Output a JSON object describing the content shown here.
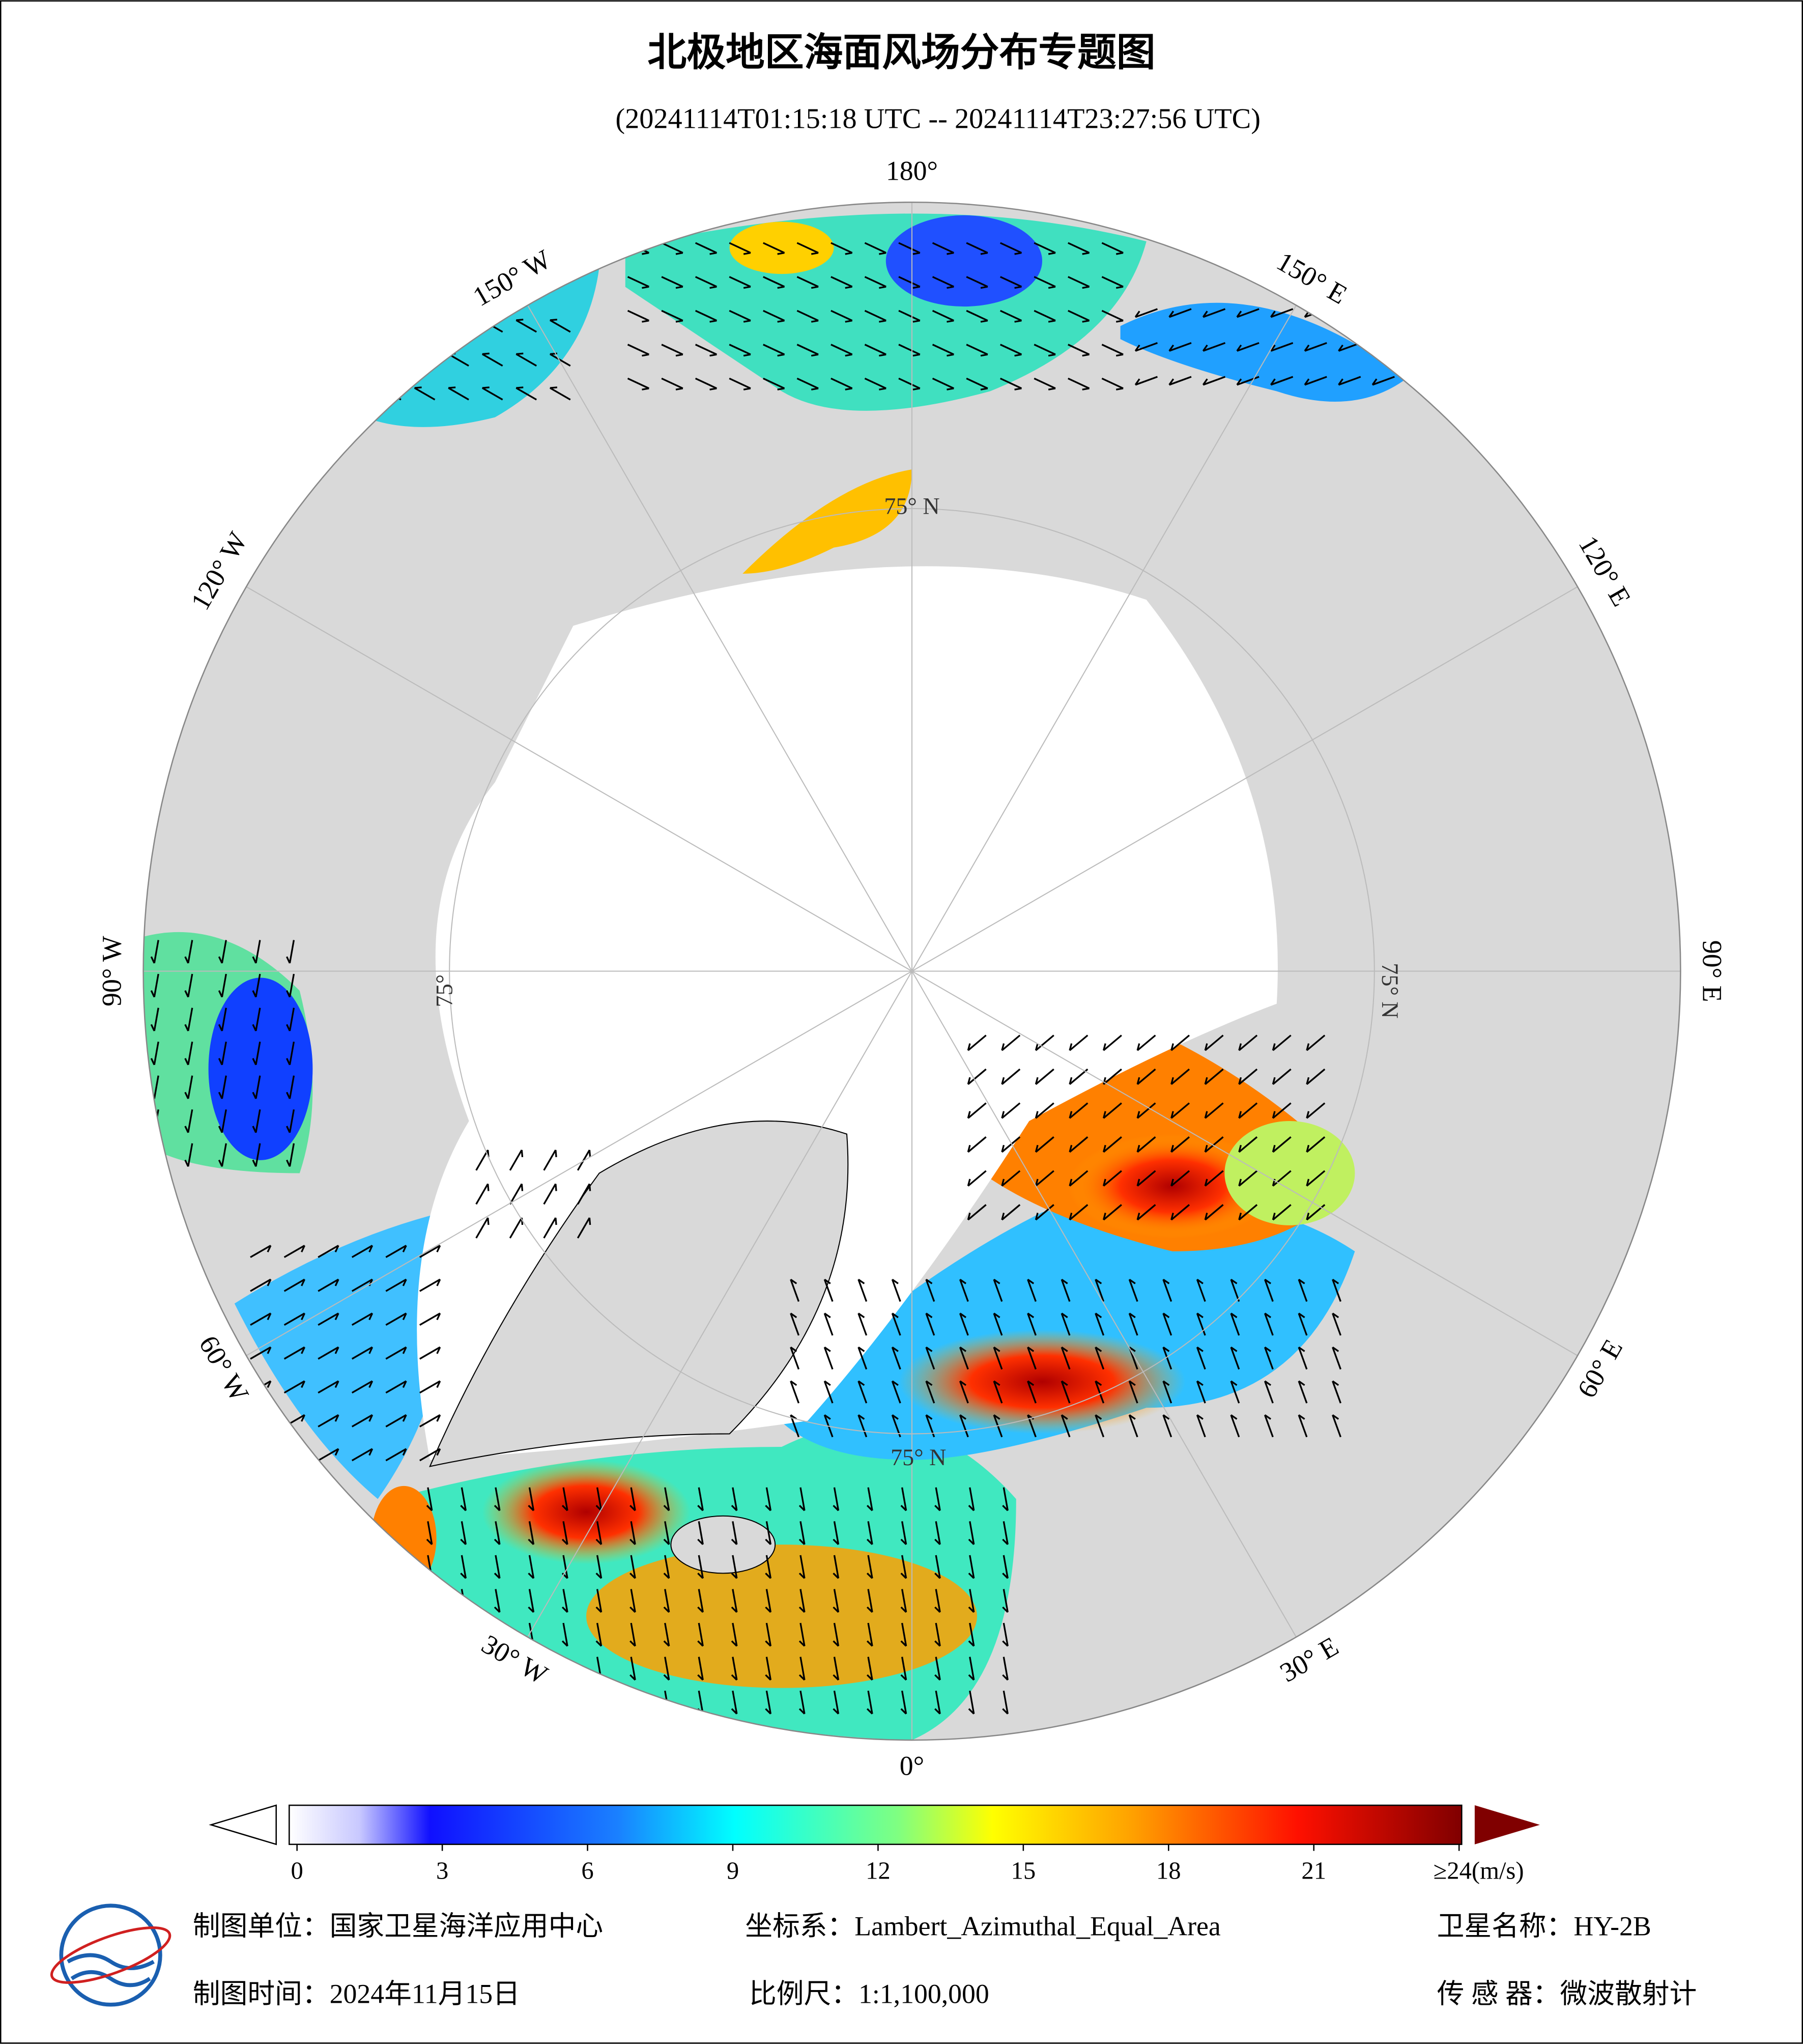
{
  "header": {
    "title": "北极地区海面风场分布专题图",
    "subtitle": "(20241114T01:15:18 UTC -- 20241114T23:27:56 UTC)"
  },
  "map": {
    "lon_labels": [
      "180°",
      "150° E",
      "120° E",
      "90° E",
      "60° E",
      "30° E",
      "0°",
      "30° W",
      "60° W",
      "90° W",
      "120° W",
      "150° W"
    ],
    "lat_labels": [
      "75° N",
      "75° N",
      "75° N",
      "75°"
    ]
  },
  "colorbar": {
    "range": [
      0,
      24
    ],
    "ticks": [
      0,
      3,
      6,
      9,
      12,
      15,
      18,
      21,
      {
        "value": 24,
        "label": "≥24(m/s)"
      }
    ]
  },
  "footer": {
    "unit": "制图单位：国家卫星海洋应用中心",
    "projection": "坐标系：Lambert_Azimuthal_Equal_Area",
    "satellite": "卫星名称：HY-2B",
    "date": "制图时间：2024年11月15日",
    "scale": "比例尺：1:1,100,000",
    "sensor": "传 感 器：微波散射计"
  }
}
